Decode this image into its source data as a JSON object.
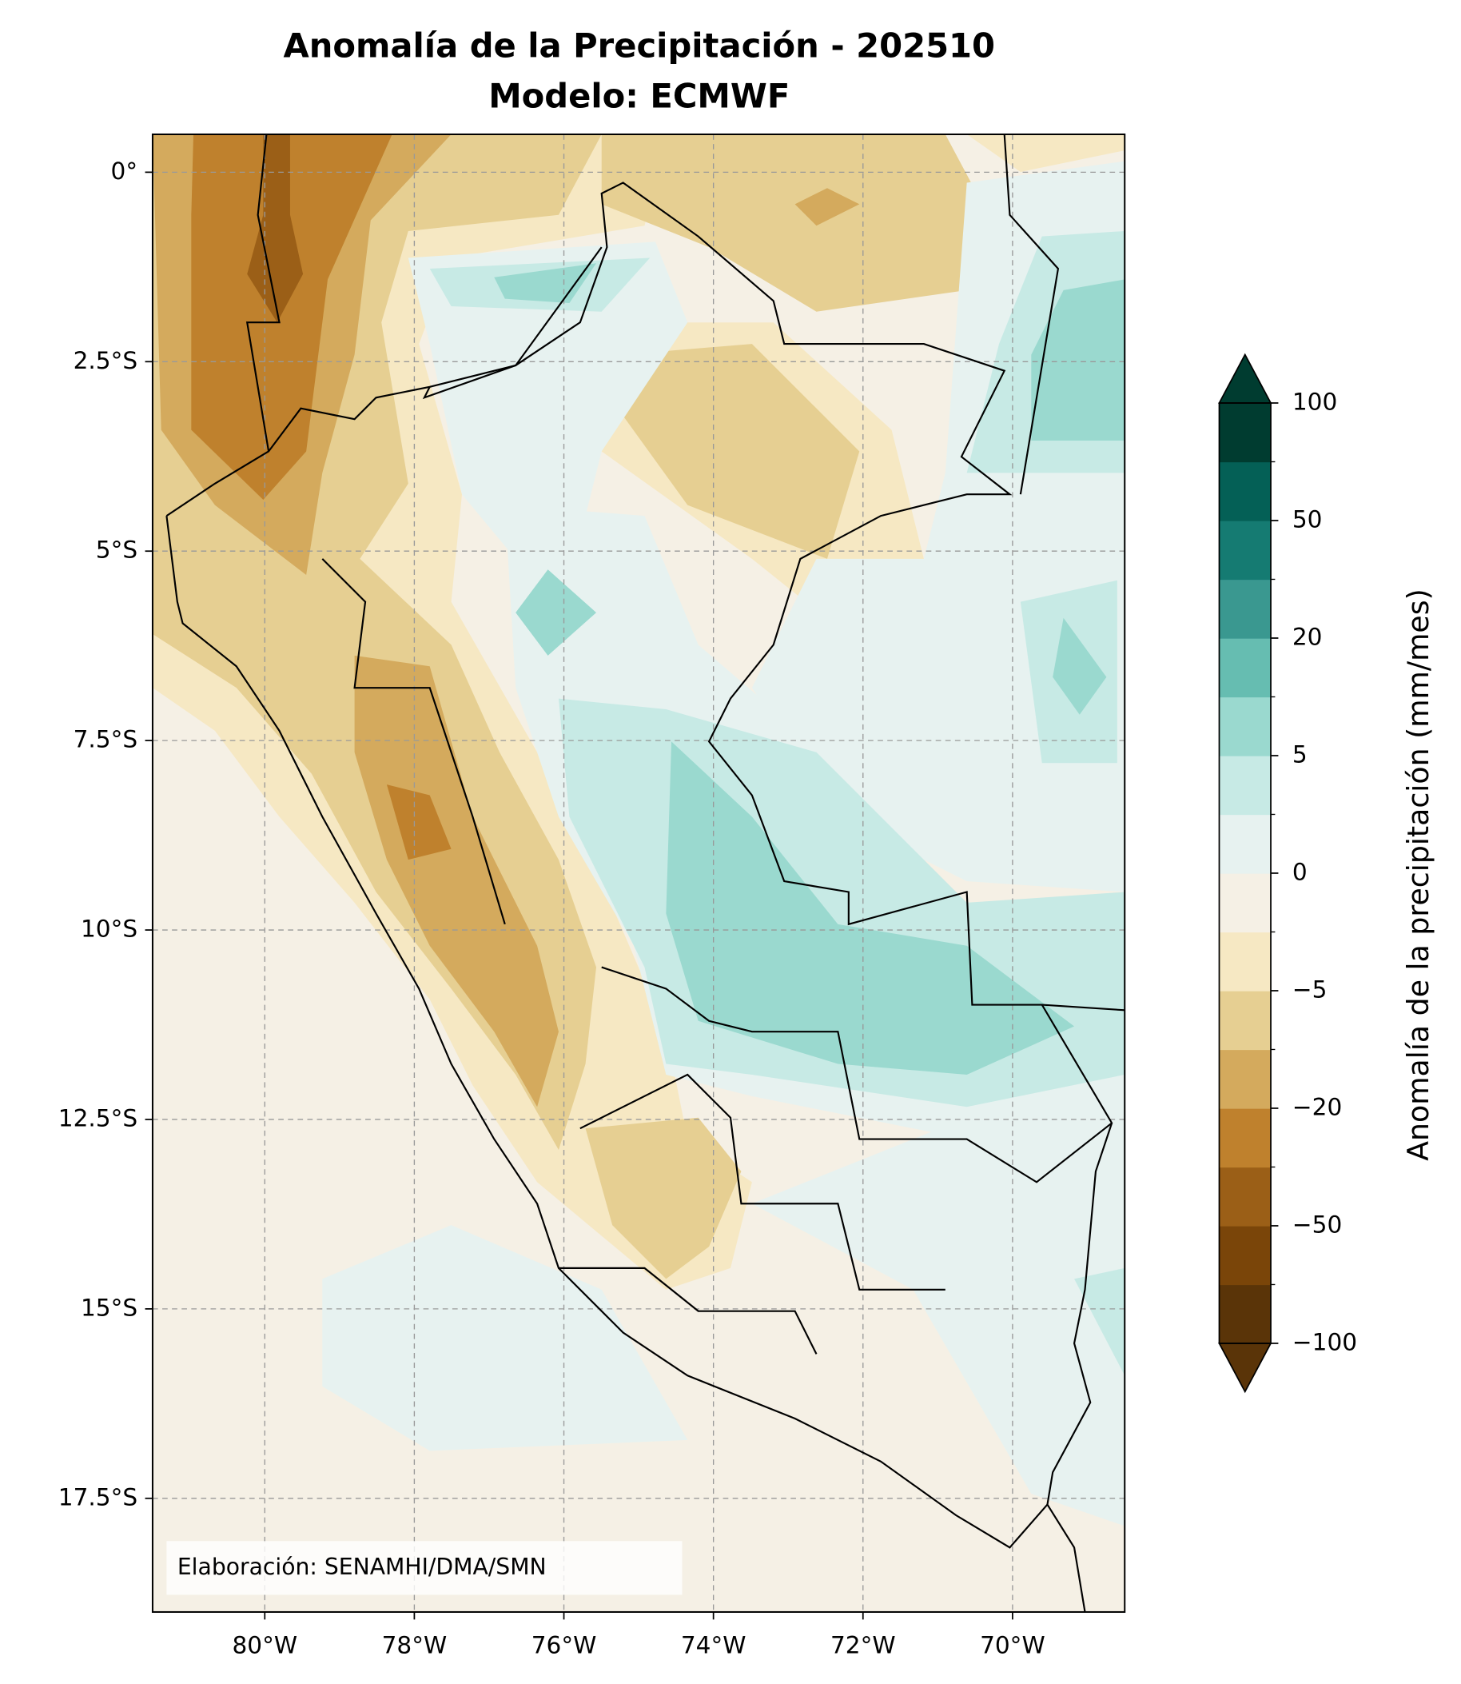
{
  "title": "Anomalía de la Precipitación - 202510",
  "subtitle": "Modelo: ECMWF",
  "map": {
    "xlim": [
      -81.5,
      -68.5
    ],
    "ylim": [
      -19,
      0.5
    ],
    "grid": true,
    "xticks": [
      {
        "value": -80,
        "label": "80°W"
      },
      {
        "value": -78,
        "label": "78°W"
      },
      {
        "value": -76,
        "label": "76°W"
      },
      {
        "value": -74,
        "label": "74°W"
      },
      {
        "value": -72,
        "label": "72°W"
      },
      {
        "value": -70,
        "label": "70°W"
      }
    ],
    "yticks": [
      {
        "value": 0,
        "label": "0°"
      },
      {
        "value": -2.5,
        "label": "2.5°S"
      },
      {
        "value": -5,
        "label": "5°S"
      },
      {
        "value": -7.5,
        "label": "7.5°S"
      },
      {
        "value": -10,
        "label": "10°S"
      },
      {
        "value": -12.5,
        "label": "12.5°S"
      },
      {
        "value": -15,
        "label": "15°S"
      },
      {
        "value": -17.5,
        "label": "17.5°S"
      }
    ]
  },
  "colorbar": {
    "label": "Anomalía de la precipitación (mm/mes)",
    "extend": "both",
    "ticks": [
      {
        "value": -100,
        "label": "−100"
      },
      {
        "value": -50,
        "label": "−50"
      },
      {
        "value": -20,
        "label": "−20"
      },
      {
        "value": -5,
        "label": "−5"
      },
      0,
      5,
      20,
      50,
      100
    ],
    "colors": [
      "#5a3408",
      "#7a4509",
      "#9b5f17",
      "#bf812d",
      "#d4aa5d",
      "#e6cf92",
      "#f6e8c3",
      "#f5f0e5",
      "#e7f2f0",
      "#c7eae5",
      "#9ad9cf",
      "#66bdb1",
      "#3a9890",
      "#157b72",
      "#046056",
      "#003c30"
    ]
  },
  "credit": "Elaboración: SENAMHI/DMA/SMN"
}
